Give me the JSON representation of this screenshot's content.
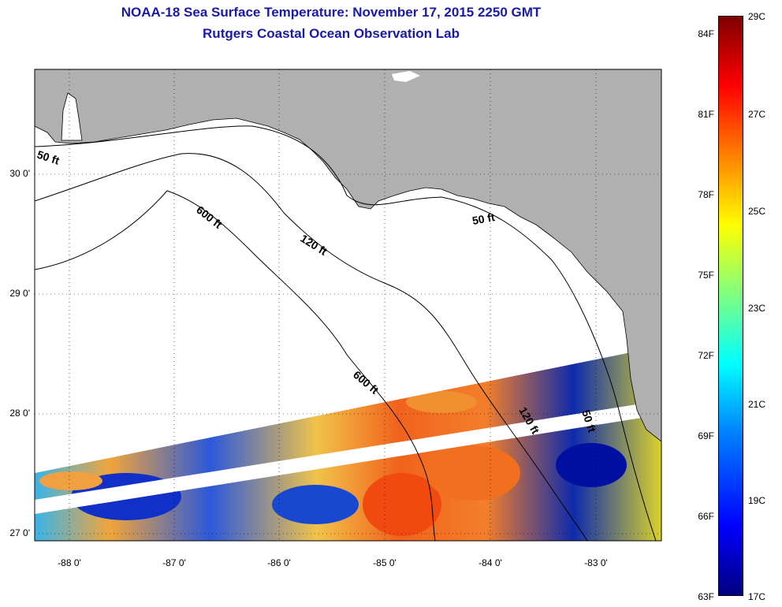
{
  "header": {
    "title": "NOAA-18 Sea Surface Temperature:  November 17, 2015 2250 GMT",
    "subtitle": "Rutgers Coastal Ocean Observation Lab"
  },
  "map": {
    "lat_labels": [
      "30 0'",
      "29 0'",
      "28 0'",
      "27 0'"
    ],
    "lon_labels": [
      "-88 0'",
      "-87 0'",
      "-86 0'",
      "-85 0'",
      "-84 0'",
      "-83 0'"
    ],
    "contour_labels": [
      {
        "id": "c50a",
        "text": "50 ft"
      },
      {
        "id": "c600a",
        "text": "600 ft"
      },
      {
        "id": "c120a",
        "text": "120 ft"
      },
      {
        "id": "c50b",
        "text": "50 ft"
      },
      {
        "id": "c600b",
        "text": "600 ft"
      },
      {
        "id": "c120b",
        "text": "120 ft"
      },
      {
        "id": "c50c",
        "text": "50 ft"
      }
    ]
  },
  "colorbar": {
    "fahrenheit": [
      "84F",
      "81F",
      "78F",
      "75F",
      "72F",
      "69F",
      "66F",
      "63F"
    ],
    "celsius": [
      "29C",
      "27C",
      "25C",
      "23C",
      "21C",
      "19C",
      "17C"
    ]
  },
  "colors": {
    "land": "#b0b0b0",
    "title": "#1a1aa8"
  }
}
